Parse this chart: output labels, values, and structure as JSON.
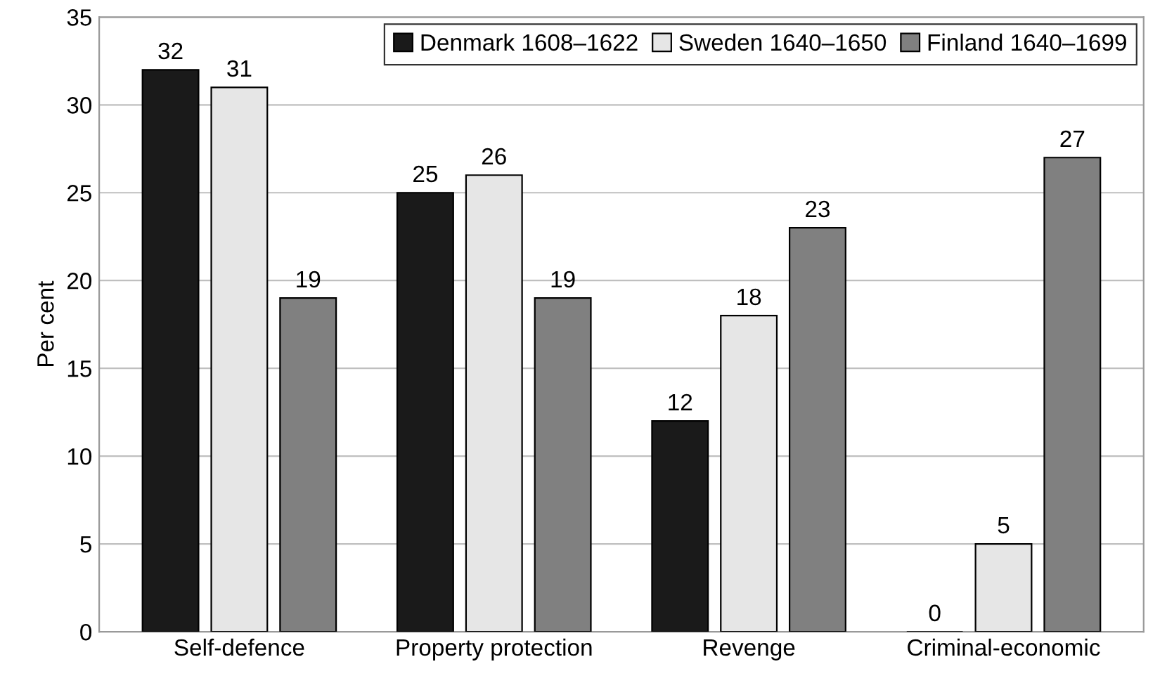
{
  "chart_data": {
    "type": "bar",
    "ylabel": "Per cent",
    "categories": [
      "Self-defence",
      "Property protection",
      "Revenge",
      "Criminal-economic"
    ],
    "series": [
      {
        "name": "Denmark 1608–1622",
        "color": "#1a1a1a",
        "values": [
          32,
          25,
          12,
          0
        ]
      },
      {
        "name": "Sweden 1640–1650",
        "color": "#e6e6e6",
        "values": [
          31,
          26,
          18,
          5
        ]
      },
      {
        "name": "Finland 1640–1699",
        "color": "#808080",
        "values": [
          19,
          19,
          23,
          27
        ]
      }
    ],
    "ylim": [
      0,
      35
    ],
    "yticks": [
      0,
      5,
      10,
      15,
      20,
      25,
      30,
      35
    ],
    "grid": "y",
    "legend": "top right",
    "data_labels": true
  }
}
